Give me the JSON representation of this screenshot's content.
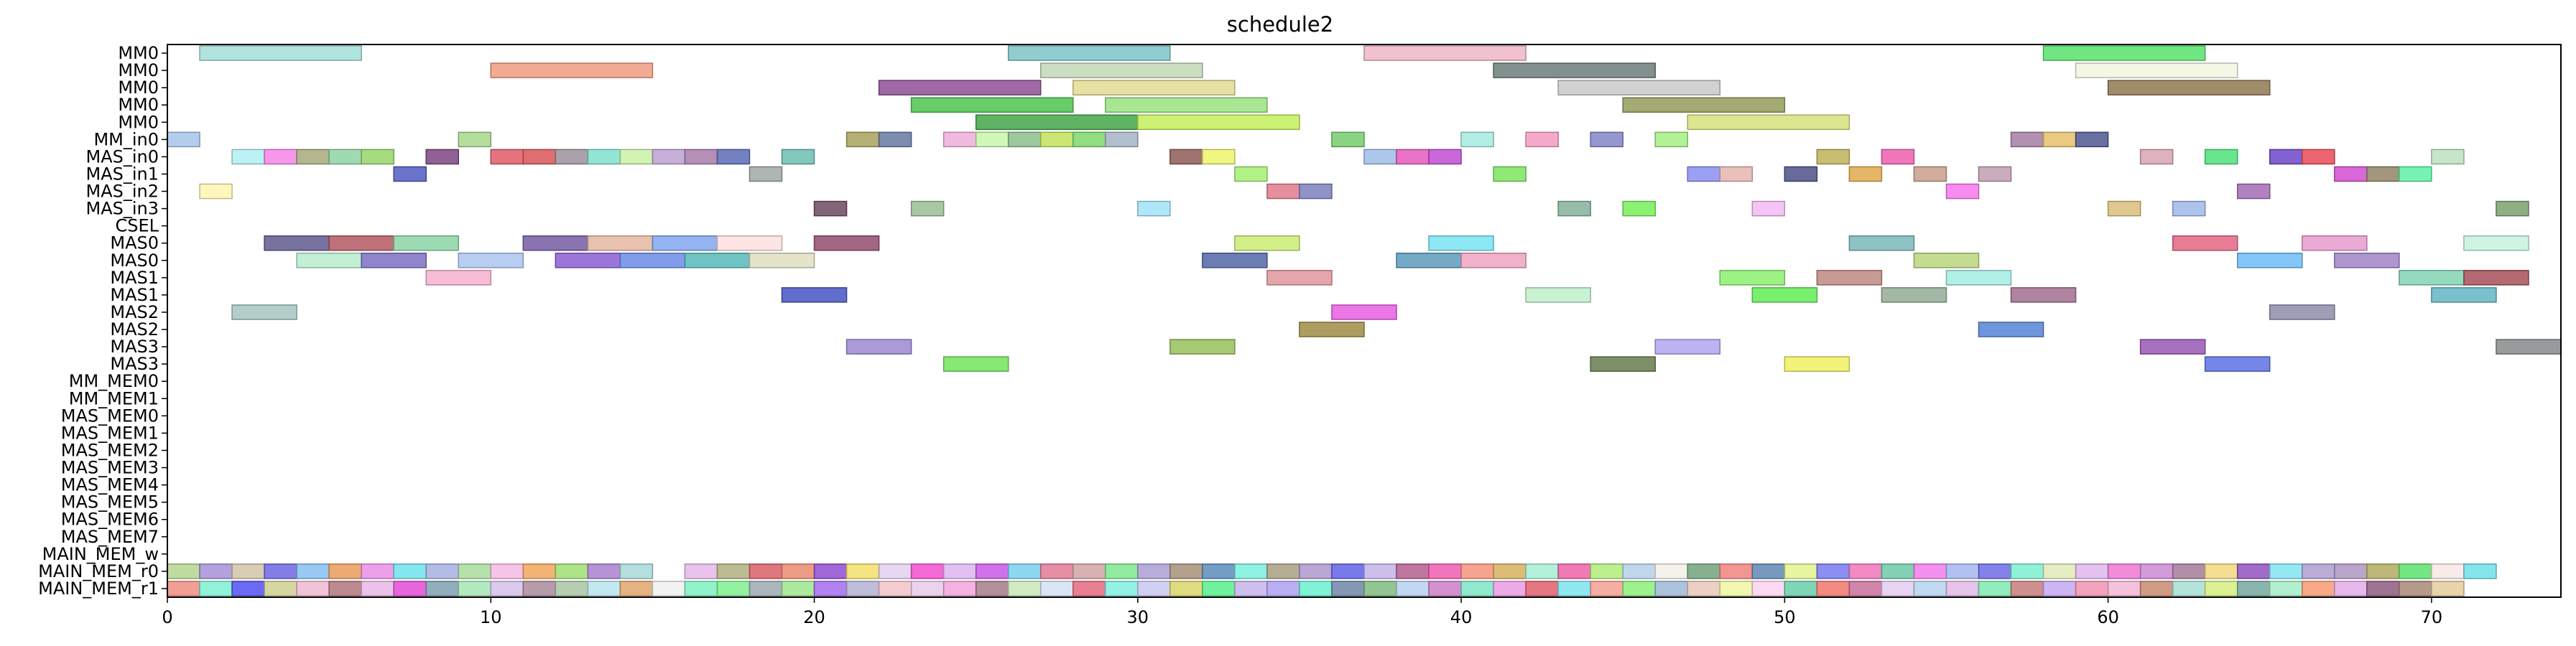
{
  "chart_data": {
    "type": "gantt",
    "title": "schedule2",
    "xlim": [
      0,
      74
    ],
    "xticks": [
      0,
      10,
      20,
      30,
      40,
      50,
      60,
      70
    ],
    "rows": [
      "MM0",
      "MM0",
      "MM0",
      "MM0",
      "MM0",
      "MM_in0",
      "MAS_in0",
      "MAS_in1",
      "MAS_in2",
      "MAS_in3",
      "CSEL",
      "MAS0",
      "MAS0",
      "MAS1",
      "MAS1",
      "MAS2",
      "MAS2",
      "MAS3",
      "MAS3",
      "MM_MEM0",
      "MM_MEM1",
      "MAS_MEM0",
      "MAS_MEM1",
      "MAS_MEM2",
      "MAS_MEM3",
      "MAS_MEM4",
      "MAS_MEM5",
      "MAS_MEM6",
      "MAS_MEM7",
      "MAIN_MEM_w",
      "MAIN_MEM_r0",
      "MAIN_MEM_r1"
    ],
    "tasks": [
      {
        "row": 0,
        "start": 1,
        "end": 6,
        "color": "#a5dfd9"
      },
      {
        "row": 0,
        "start": 26,
        "end": 31,
        "color": "#7cc4c8"
      },
      {
        "row": 0,
        "start": 37,
        "end": 42,
        "color": "#efb7c6"
      },
      {
        "row": 0,
        "start": 58,
        "end": 63,
        "color": "#57e26b"
      },
      {
        "row": 1,
        "start": 10,
        "end": 15,
        "color": "#f19b80"
      },
      {
        "row": 1,
        "start": 27,
        "end": 32,
        "color": "#c3d9b8"
      },
      {
        "row": 1,
        "start": 41,
        "end": 46,
        "color": "#6c7d7a"
      },
      {
        "row": 1,
        "start": 59,
        "end": 64,
        "color": "#f2f4e2"
      },
      {
        "row": 2,
        "start": 22,
        "end": 27,
        "color": "#8e4f93"
      },
      {
        "row": 2,
        "start": 28,
        "end": 33,
        "color": "#e3dc93"
      },
      {
        "row": 2,
        "start": 43,
        "end": 48,
        "color": "#c9c9c9"
      },
      {
        "row": 2,
        "start": 60,
        "end": 65,
        "color": "#8d7850"
      },
      {
        "row": 3,
        "start": 23,
        "end": 28,
        "color": "#4dc44d"
      },
      {
        "row": 3,
        "start": 29,
        "end": 34,
        "color": "#98e37f"
      },
      {
        "row": 3,
        "start": 45,
        "end": 50,
        "color": "#939b5b"
      },
      {
        "row": 4,
        "start": 25,
        "end": 30,
        "color": "#42a747"
      },
      {
        "row": 4,
        "start": 30,
        "end": 35,
        "color": "#c4f05a"
      },
      {
        "row": 4,
        "start": 47,
        "end": 52,
        "color": "#d6e27a"
      },
      {
        "row": 5,
        "start": 0,
        "end": 1,
        "color": "#a7c4ea"
      },
      {
        "row": 5,
        "start": 9,
        "end": 10,
        "color": "#a8d78d"
      },
      {
        "row": 5,
        "start": 21,
        "end": 22,
        "color": "#a7a25a"
      },
      {
        "row": 5,
        "start": 22,
        "end": 23,
        "color": "#6679a2"
      },
      {
        "row": 5,
        "start": 24,
        "end": 25,
        "color": "#eeafd9"
      },
      {
        "row": 5,
        "start": 25,
        "end": 26,
        "color": "#c7f7ad"
      },
      {
        "row": 5,
        "start": 26,
        "end": 27,
        "color": "#8cbf8e"
      },
      {
        "row": 5,
        "start": 27,
        "end": 28,
        "color": "#c2e25b"
      },
      {
        "row": 5,
        "start": 28,
        "end": 29,
        "color": "#7ed86b"
      },
      {
        "row": 5,
        "start": 29,
        "end": 30,
        "color": "#a3b4c6"
      },
      {
        "row": 5,
        "start": 36,
        "end": 37,
        "color": "#74cd6c"
      },
      {
        "row": 5,
        "start": 40,
        "end": 41,
        "color": "#a6ebe1"
      },
      {
        "row": 5,
        "start": 42,
        "end": 43,
        "color": "#f59bc2"
      },
      {
        "row": 5,
        "start": 44,
        "end": 45,
        "color": "#8385c7"
      },
      {
        "row": 5,
        "start": 46,
        "end": 47,
        "color": "#a4ee82"
      },
      {
        "row": 5,
        "start": 57,
        "end": 58,
        "color": "#a57da3"
      },
      {
        "row": 5,
        "start": 58,
        "end": 59,
        "color": "#e6c16a"
      },
      {
        "row": 5,
        "start": 59,
        "end": 60,
        "color": "#4e5690"
      },
      {
        "row": 6,
        "start": 2,
        "end": 3,
        "color": "#b2f0f2"
      },
      {
        "row": 6,
        "start": 3,
        "end": 4,
        "color": "#f585e9"
      },
      {
        "row": 6,
        "start": 4,
        "end": 5,
        "color": "#a7aa7a"
      },
      {
        "row": 6,
        "start": 5,
        "end": 6,
        "color": "#8fd3a6"
      },
      {
        "row": 6,
        "start": 6,
        "end": 7,
        "color": "#97d56a"
      },
      {
        "row": 6,
        "start": 8,
        "end": 9,
        "color": "#7c4583"
      },
      {
        "row": 6,
        "start": 10,
        "end": 11,
        "color": "#e05a67"
      },
      {
        "row": 6,
        "start": 11,
        "end": 12,
        "color": "#d85657"
      },
      {
        "row": 6,
        "start": 12,
        "end": 13,
        "color": "#9c919b"
      },
      {
        "row": 6,
        "start": 13,
        "end": 14,
        "color": "#7fe0cd"
      },
      {
        "row": 6,
        "start": 14,
        "end": 15,
        "color": "#c9f1a7"
      },
      {
        "row": 6,
        "start": 15,
        "end": 16,
        "color": "#bca2d3"
      },
      {
        "row": 6,
        "start": 16,
        "end": 17,
        "color": "#a97bad"
      },
      {
        "row": 6,
        "start": 17,
        "end": 18,
        "color": "#5a6bb6"
      },
      {
        "row": 6,
        "start": 19,
        "end": 20,
        "color": "#6cbdb0"
      },
      {
        "row": 6,
        "start": 31,
        "end": 32,
        "color": "#8e5b57"
      },
      {
        "row": 6,
        "start": 32,
        "end": 33,
        "color": "#ecf56b"
      },
      {
        "row": 6,
        "start": 37,
        "end": 38,
        "color": "#9fbdea"
      },
      {
        "row": 6,
        "start": 38,
        "end": 39,
        "color": "#e45ac0"
      },
      {
        "row": 6,
        "start": 39,
        "end": 40,
        "color": "#bf4dd2"
      },
      {
        "row": 6,
        "start": 51,
        "end": 52,
        "color": "#bfb15a"
      },
      {
        "row": 6,
        "start": 53,
        "end": 54,
        "color": "#ee5fb1"
      },
      {
        "row": 6,
        "start": 61,
        "end": 62,
        "color": "#d8a4b0"
      },
      {
        "row": 6,
        "start": 63,
        "end": 64,
        "color": "#4fe07c"
      },
      {
        "row": 6,
        "start": 65,
        "end": 66,
        "color": "#6c47c9"
      },
      {
        "row": 6,
        "start": 66,
        "end": 67,
        "color": "#e94a58"
      },
      {
        "row": 6,
        "start": 70,
        "end": 71,
        "color": "#bde0c0"
      },
      {
        "row": 7,
        "start": 7,
        "end": 8,
        "color": "#4f5cc1"
      },
      {
        "row": 7,
        "start": 18,
        "end": 19,
        "color": "#a0a8a6"
      },
      {
        "row": 7,
        "start": 33,
        "end": 34,
        "color": "#a5ee73"
      },
      {
        "row": 7,
        "start": 41,
        "end": 42,
        "color": "#7de55f"
      },
      {
        "row": 7,
        "start": 47,
        "end": 48,
        "color": "#8a8ff2"
      },
      {
        "row": 7,
        "start": 48,
        "end": 49,
        "color": "#e6b5b2"
      },
      {
        "row": 7,
        "start": 50,
        "end": 51,
        "color": "#4e5187"
      },
      {
        "row": 7,
        "start": 52,
        "end": 53,
        "color": "#e2a94d"
      },
      {
        "row": 7,
        "start": 54,
        "end": 55,
        "color": "#c99e8c"
      },
      {
        "row": 7,
        "start": 56,
        "end": 57,
        "color": "#c19fb1"
      },
      {
        "row": 7,
        "start": 67,
        "end": 68,
        "color": "#d34dd1"
      },
      {
        "row": 7,
        "start": 68,
        "end": 69,
        "color": "#8f8565"
      },
      {
        "row": 7,
        "start": 69,
        "end": 70,
        "color": "#5ef0a6"
      },
      {
        "row": 8,
        "start": 1,
        "end": 2,
        "color": "#fff6b3"
      },
      {
        "row": 8,
        "start": 34,
        "end": 35,
        "color": "#e07a8b"
      },
      {
        "row": 8,
        "start": 35,
        "end": 36,
        "color": "#7d80bd"
      },
      {
        "row": 8,
        "start": 55,
        "end": 56,
        "color": "#f778ef"
      },
      {
        "row": 8,
        "start": 64,
        "end": 65,
        "color": "#a26cb6"
      },
      {
        "row": 9,
        "start": 20,
        "end": 21,
        "color": "#6d4a62"
      },
      {
        "row": 9,
        "start": 23,
        "end": 24,
        "color": "#9abd94"
      },
      {
        "row": 9,
        "start": 30,
        "end": 31,
        "color": "#a2e3f7"
      },
      {
        "row": 9,
        "start": 43,
        "end": 44,
        "color": "#84b29a"
      },
      {
        "row": 9,
        "start": 45,
        "end": 46,
        "color": "#78ee5b"
      },
      {
        "row": 9,
        "start": 49,
        "end": 50,
        "color": "#f3baf2"
      },
      {
        "row": 9,
        "start": 60,
        "end": 61,
        "color": "#d9c07c"
      },
      {
        "row": 9,
        "start": 62,
        "end": 63,
        "color": "#9fb8ea"
      },
      {
        "row": 9,
        "start": 72,
        "end": 73,
        "color": "#7ca06e"
      },
      {
        "row": 11,
        "start": 3,
        "end": 5,
        "color": "#5f5a8d"
      },
      {
        "row": 11,
        "start": 5,
        "end": 7,
        "color": "#b35861"
      },
      {
        "row": 11,
        "start": 7,
        "end": 9,
        "color": "#8cd5a6"
      },
      {
        "row": 11,
        "start": 11,
        "end": 13,
        "color": "#755ba3"
      },
      {
        "row": 11,
        "start": 13,
        "end": 15,
        "color": "#e5b7a1"
      },
      {
        "row": 11,
        "start": 15,
        "end": 17,
        "color": "#83a4ee"
      },
      {
        "row": 11,
        "start": 17,
        "end": 19,
        "color": "#fde0e0"
      },
      {
        "row": 11,
        "start": 20,
        "end": 22,
        "color": "#924c6f"
      },
      {
        "row": 11,
        "start": 33,
        "end": 35,
        "color": "#cbed73"
      },
      {
        "row": 11,
        "start": 39,
        "end": 41,
        "color": "#7ae3f2"
      },
      {
        "row": 11,
        "start": 52,
        "end": 54,
        "color": "#7bb7b7"
      },
      {
        "row": 11,
        "start": 62,
        "end": 64,
        "color": "#e36683"
      },
      {
        "row": 11,
        "start": 66,
        "end": 68,
        "color": "#e89ace"
      },
      {
        "row": 11,
        "start": 71,
        "end": 73,
        "color": "#c7f2de"
      },
      {
        "row": 12,
        "start": 4,
        "end": 6,
        "color": "#b7ecce"
      },
      {
        "row": 12,
        "start": 6,
        "end": 8,
        "color": "#7d6fc3"
      },
      {
        "row": 12,
        "start": 9,
        "end": 11,
        "color": "#aac6f0"
      },
      {
        "row": 12,
        "start": 12,
        "end": 14,
        "color": "#8b5ed6"
      },
      {
        "row": 12,
        "start": 14,
        "end": 16,
        "color": "#6c8be8"
      },
      {
        "row": 12,
        "start": 16,
        "end": 18,
        "color": "#56bab9"
      },
      {
        "row": 12,
        "start": 18,
        "end": 20,
        "color": "#e0dec0"
      },
      {
        "row": 12,
        "start": 32,
        "end": 34,
        "color": "#5266a6"
      },
      {
        "row": 12,
        "start": 38,
        "end": 40,
        "color": "#5c9bbb"
      },
      {
        "row": 12,
        "start": 40,
        "end": 42,
        "color": "#eea3c2"
      },
      {
        "row": 12,
        "start": 54,
        "end": 56,
        "color": "#bad67d"
      },
      {
        "row": 12,
        "start": 64,
        "end": 66,
        "color": "#6ebcf6"
      },
      {
        "row": 12,
        "start": 67,
        "end": 69,
        "color": "#a184c6"
      },
      {
        "row": 13,
        "start": 8,
        "end": 10,
        "color": "#f6b1cf"
      },
      {
        "row": 13,
        "start": 34,
        "end": 36,
        "color": "#e0979c"
      },
      {
        "row": 13,
        "start": 48,
        "end": 50,
        "color": "#8cf06e"
      },
      {
        "row": 13,
        "start": 51,
        "end": 53,
        "color": "#bd8880"
      },
      {
        "row": 13,
        "start": 55,
        "end": 57,
        "color": "#a4ece2"
      },
      {
        "row": 13,
        "start": 69,
        "end": 71,
        "color": "#81d4b4"
      },
      {
        "row": 13,
        "start": 71,
        "end": 73,
        "color": "#a84f58"
      },
      {
        "row": 14,
        "start": 19,
        "end": 21,
        "color": "#4755c4"
      },
      {
        "row": 14,
        "start": 42,
        "end": 44,
        "color": "#bff0cb"
      },
      {
        "row": 14,
        "start": 49,
        "end": 51,
        "color": "#62ec56"
      },
      {
        "row": 14,
        "start": 53,
        "end": 55,
        "color": "#93ad95"
      },
      {
        "row": 14,
        "start": 57,
        "end": 59,
        "color": "#a26f8f"
      },
      {
        "row": 14,
        "start": 70,
        "end": 72,
        "color": "#62b6c7"
      },
      {
        "row": 15,
        "start": 2,
        "end": 4,
        "color": "#a6c4c0"
      },
      {
        "row": 15,
        "start": 36,
        "end": 38,
        "color": "#e85ee3"
      },
      {
        "row": 15,
        "start": 65,
        "end": 67,
        "color": "#8d8ea9"
      },
      {
        "row": 16,
        "start": 35,
        "end": 37,
        "color": "#a08c45"
      },
      {
        "row": 16,
        "start": 56,
        "end": 58,
        "color": "#5684d7"
      },
      {
        "row": 17,
        "start": 21,
        "end": 23,
        "color": "#9b8ad1"
      },
      {
        "row": 17,
        "start": 31,
        "end": 33,
        "color": "#97c05c"
      },
      {
        "row": 17,
        "start": 46,
        "end": 48,
        "color": "#b1a5f0"
      },
      {
        "row": 17,
        "start": 61,
        "end": 63,
        "color": "#9657b4"
      },
      {
        "row": 17,
        "start": 72,
        "end": 74,
        "color": "#868a89"
      },
      {
        "row": 18,
        "start": 24,
        "end": 26,
        "color": "#72e45c"
      },
      {
        "row": 18,
        "start": 44,
        "end": 46,
        "color": "#667d4f"
      },
      {
        "row": 18,
        "start": 50,
        "end": 52,
        "color": "#f0f160"
      },
      {
        "row": 18,
        "start": 63,
        "end": 65,
        "color": "#5e72e6"
      }
    ],
    "mem_r0_colors": [
      "#b5d58f",
      "#a493d8",
      "#d3c4a8",
      "#6f66e1",
      "#86bff3",
      "#ea9c5a",
      "#ea8fe6",
      "#6ee3ec",
      "#a4b0e2",
      "#a7dd9b",
      "#f6b9e5",
      "#f1a65c",
      "#a0de73",
      "#a980cf",
      "#a8d9d8",
      "#ffffff",
      "#e6b8ea",
      "#b0b080",
      "#d95f67",
      "#ea8b6e",
      "#8f4dd0",
      "#f3e06a",
      "#e4d0f0",
      "#f24ed1",
      "#ddb6f0",
      "#c858e8",
      "#7ad0ef",
      "#e07a95",
      "#d1a5a5",
      "#7de78d",
      "#aa9ed4",
      "#a69077",
      "#5b8cba",
      "#7aeedd",
      "#a99f82",
      "#ad96ce",
      "#6161e8",
      "#c4b3e8",
      "#b35e8e",
      "#f05cb0",
      "#f4947c",
      "#d7b05f",
      "#a6efd3",
      "#ec63a7",
      "#b2ec78",
      "#b5d0e8",
      "#f3f0e7",
      "#72a27a",
      "#f1827e",
      "#5f87b2",
      "#e3f28f",
      "#777af0",
      "#f275bb",
      "#6dc8a8",
      "#f17dee",
      "#a5b6f0",
      "#6e6be5",
      "#7bf0d0",
      "#e3eab7",
      "#dfb6ec",
      "#ef77d4",
      "#cc88d5",
      "#a37b9a",
      "#f1d87e",
      "#8f51c0",
      "#81e4f1",
      "#ae9dd0",
      "#ae95c2",
      "#b2aa5f",
      "#5ce26d",
      "#f8e7e6",
      "#6ee1ea"
    ],
    "mem_r1_colors": [
      "#ef8d83",
      "#7ef0d1",
      "#5150f0",
      "#cfcf93",
      "#eeb9d0",
      "#b2757d",
      "#e8b8e6",
      "#e34bd8",
      "#7f9faf",
      "#a6e5b4",
      "#d5c1ea",
      "#ab8a9c",
      "#aac6a5",
      "#b7e4f0",
      "#e0a46c",
      "#f0f0f0",
      "#7ff0c1",
      "#80f08e",
      "#9ea9b2",
      "#9fe68f",
      "#a56cf0",
      "#b3b3d4",
      "#f3c4c9",
      "#e8cbe8",
      "#f3a5da",
      "#a67b8a",
      "#c9e7b8",
      "#d5e2f2",
      "#e4687f",
      "#7ff0e0",
      "#c9c8f0",
      "#d9d66a",
      "#56f08a",
      "#c5b4ec",
      "#b0a0f0",
      "#6af0ce",
      "#6f86a7",
      "#7fbb7f",
      "#b7d0ef",
      "#cd7ec7",
      "#7de5c6",
      "#e99be5",
      "#e05f6d",
      "#7ce5f0",
      "#f2a092",
      "#8cf07a",
      "#9db8d5",
      "#e8c8b8",
      "#eef7a2",
      "#fdd4f0",
      "#68d0ac",
      "#f1776d",
      "#c96f9a",
      "#e2cdf0",
      "#b5d3f0",
      "#e2b9e4",
      "#7feab0",
      "#c67e7a",
      "#c5a9f0",
      "#f193b2",
      "#f2b7d4",
      "#c98b70",
      "#a5dfd2",
      "#d6ef7f",
      "#75a8a0",
      "#a4ecc5",
      "#f79a72",
      "#e2ace8",
      "#8d5c7f",
      "#a88878",
      "#e5cc9c"
    ]
  }
}
